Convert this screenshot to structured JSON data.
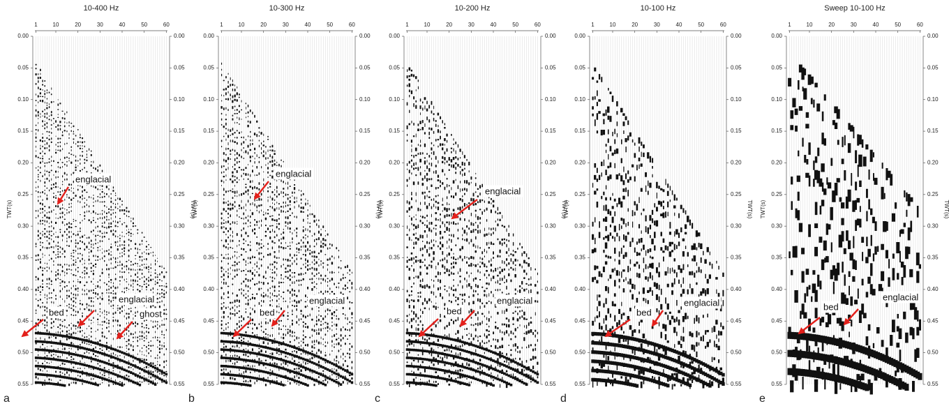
{
  "y_axis_label": "TWT(s)",
  "y_ticks": [
    {
      "value": 0,
      "label": "0.00"
    },
    {
      "value": 0.05,
      "label": "0.05"
    },
    {
      "value": 0.1,
      "label": "0.10"
    },
    {
      "value": 0.15,
      "label": "0.15"
    },
    {
      "value": 0.2,
      "label": "0.20"
    },
    {
      "value": 0.25,
      "label": "0.25"
    },
    {
      "value": 0.3,
      "label": "0.30"
    },
    {
      "value": 0.35,
      "label": "0.35"
    },
    {
      "value": 0.4,
      "label": "0.40"
    },
    {
      "value": 0.45,
      "label": "0.45"
    },
    {
      "value": 0.5,
      "label": "0.50"
    },
    {
      "value": 0.55,
      "label": "0.55"
    }
  ],
  "x_ticks": [
    1,
    10,
    20,
    30,
    40,
    50,
    60
  ],
  "panels": [
    {
      "label": "a",
      "title": "10-400 Hz",
      "annotations": [
        "englacial",
        "bed",
        "englacial",
        "ghost"
      ]
    },
    {
      "label": "b",
      "title": "10-300 Hz",
      "annotations": [
        "englacial",
        "bed",
        "englacial"
      ]
    },
    {
      "label": "c",
      "title": "10-200 Hz",
      "annotations": [
        "englacial",
        "bed",
        "englacial"
      ]
    },
    {
      "label": "d",
      "title": "10-100 Hz",
      "annotations": [
        "bed",
        "englacial"
      ]
    },
    {
      "label": "e",
      "title": "Sweep 10-100 Hz",
      "annotations": [
        "bed",
        "englacial"
      ]
    }
  ]
}
